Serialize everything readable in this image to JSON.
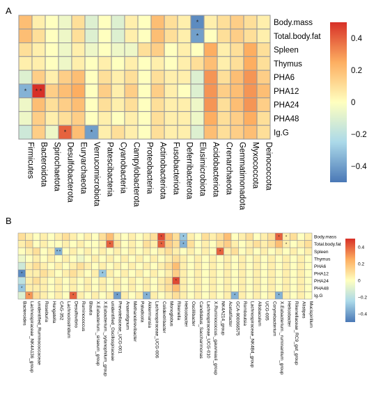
{
  "colors": {
    "low": "#4a78b6",
    "mid": "#ffffbf",
    "high": "#d73027",
    "grid": "#9a9a9a"
  },
  "chart_data": [
    {
      "panel_label": "A",
      "type": "heatmap",
      "title": "",
      "rows": [
        "Body.mass",
        "Total.body.fat",
        "Spleen",
        "Thymus",
        "PHA6",
        "PHA12",
        "PHA24",
        "PHA48",
        "Ig.G"
      ],
      "columns": [
        "Firmicutes",
        "Bacteroidota",
        "Spirochaetota",
        "Desulfobacterota",
        "Euryarchaeota",
        "Verrucomicrobiota",
        "Patescibacteria",
        "Cyanobacteria",
        "Campylobacterota",
        "Proteobacteria",
        "Actinobacteriota",
        "Fusobacteriota",
        "Deferribacterota",
        "Elusimicrobiota",
        "Acidobacteriota",
        "Crenarchaeota",
        "Gemmatimonadota",
        "Myxococcota",
        "Deinococcota"
      ],
      "values": [
        [
          0.2,
          0.05,
          0.0,
          -0.05,
          0.1,
          -0.1,
          0.0,
          -0.1,
          0.05,
          0.0,
          0.2,
          0.1,
          0.05,
          -0.45,
          0.05,
          0.1,
          0.15,
          0.1,
          0.05
        ],
        [
          0.2,
          0.1,
          0.0,
          -0.05,
          0.1,
          -0.1,
          0.0,
          -0.1,
          0.05,
          0.0,
          0.2,
          0.1,
          0.05,
          -0.4,
          0.0,
          0.1,
          0.15,
          0.1,
          0.05
        ],
        [
          0.1,
          0.05,
          0.0,
          -0.05,
          0.05,
          -0.05,
          0.0,
          -0.05,
          -0.05,
          0.1,
          0.15,
          0.0,
          0.05,
          0.0,
          0.25,
          0.05,
          0.1,
          0.25,
          0.1
        ],
        [
          0.05,
          0.05,
          0.0,
          -0.05,
          0.05,
          0.0,
          0.05,
          0.0,
          0.05,
          0.0,
          0.05,
          0.0,
          0.05,
          0.1,
          0.2,
          0.05,
          0.1,
          0.25,
          0.1
        ],
        [
          -0.1,
          0.15,
          0.05,
          0.15,
          0.2,
          0.0,
          0.1,
          0.05,
          0.1,
          0.0,
          0.1,
          0.05,
          0.05,
          -0.1,
          0.3,
          0.1,
          0.2,
          0.3,
          0.15
        ],
        [
          -0.35,
          0.5,
          0.15,
          0.2,
          0.25,
          0.0,
          0.15,
          0.05,
          0.15,
          0.0,
          0.15,
          0.05,
          0.0,
          -0.1,
          0.3,
          0.15,
          0.2,
          0.3,
          0.2
        ],
        [
          -0.05,
          0.2,
          0.1,
          0.15,
          0.2,
          0.0,
          0.1,
          0.05,
          0.1,
          0.0,
          0.1,
          0.05,
          0.05,
          -0.05,
          0.3,
          0.1,
          0.2,
          0.3,
          0.15
        ],
        [
          -0.05,
          0.15,
          0.05,
          0.1,
          0.15,
          0.0,
          0.05,
          0.0,
          0.05,
          0.0,
          0.1,
          0.05,
          0.05,
          -0.05,
          0.25,
          0.1,
          0.15,
          0.25,
          0.1
        ],
        [
          -0.15,
          0.15,
          -0.05,
          0.4,
          0.2,
          -0.4,
          0.05,
          0.1,
          0.05,
          0.0,
          0.1,
          0.05,
          0.05,
          -0.1,
          0.2,
          0.1,
          0.15,
          0.2,
          0.1
        ]
      ],
      "significance": [
        {
          "row": "Body.mass",
          "column": "Elusimicrobiota",
          "mark": "*"
        },
        {
          "row": "Total.body.fat",
          "column": "Elusimicrobiota",
          "mark": "*"
        },
        {
          "row": "PHA12",
          "column": "Firmicutes",
          "mark": "*"
        },
        {
          "row": "PHA12",
          "column": "Bacteroidota",
          "mark": "* *"
        },
        {
          "row": "Ig.G",
          "column": "Desulfobacterota",
          "mark": "*"
        },
        {
          "row": "Ig.G",
          "column": "Verrucomicrobiota",
          "mark": "*"
        }
      ],
      "color_range": [
        -0.5,
        0.5
      ],
      "colorbar_ticks": [
        "0.4",
        "0.2",
        "0",
        "−0.2",
        "−0.4"
      ],
      "colorbar_tick_values": [
        0.4,
        0.2,
        0,
        -0.2,
        -0.4
      ]
    },
    {
      "panel_label": "B",
      "type": "heatmap",
      "title": "",
      "rows": [
        "Body.mass",
        "Total.body.fat",
        "Spleen",
        "Thymus",
        "PHA6",
        "PHA12",
        "PHA24",
        "PHA48",
        "Ig.G"
      ],
      "columns": [
        "Bacteroides",
        "Lachnospiraceae_NK4A136_group",
        "unidentified_Ruminococcaceae",
        "Roseburia",
        "Hungatella",
        "CAG-352",
        "Lachnoclostridium",
        "Desulfovibrio",
        "Ruminococcus",
        "Blautia",
        "X.Eubacterium._siraeum_group",
        "X.Eubacterium._xylanophilum_group",
        "unidentified_Oscillospiraceae",
        "Prevotellaceae_UCG-001",
        "Anaerotignum",
        "Methanobrevibacter",
        "Paludicola",
        "Akkermansia",
        "Lachnospiraceae_UCG-006",
        "Colidextribacter",
        "Monoglobus",
        "Rikenella",
        "Helicobacter",
        "Oscillibacter",
        "Candidatus_Saccharimonas",
        "Lachnospiraceae_UCG-010",
        "X.Ruminococcus._gauvreauii_group",
        "NK4A214_group",
        "Acetatifactor",
        "GCA-900066575",
        "Romboutsia",
        "Lachnospiraceae_NK4B4_group",
        "Allobaculum",
        "UCG-005",
        "Corynebacterium",
        "X.Eubacterium._ruminantium_group",
        "Helicobacter",
        "Rikenellaceae_RC9_gut_group",
        "Alistipes",
        "Mucispirillum"
      ],
      "values": [
        [
          0.1,
          0.05,
          0.0,
          0.05,
          0.0,
          0.05,
          0.1,
          0.05,
          0.0,
          0.05,
          0.0,
          0.1,
          0.2,
          0.05,
          0.0,
          0.05,
          0.0,
          0.05,
          0.1,
          0.45,
          0.2,
          0.1,
          -0.3,
          0.05,
          0.0,
          0.1,
          0.05,
          0.1,
          0.2,
          0.0,
          0.05,
          0.1,
          0.0,
          0.05,
          0.1,
          0.4,
          0.05,
          0.1,
          0.0,
          0.05
        ],
        [
          0.05,
          0.1,
          0.0,
          0.05,
          0.0,
          0.0,
          0.05,
          0.0,
          0.05,
          0.0,
          0.0,
          0.05,
          0.4,
          0.1,
          0.0,
          0.05,
          0.0,
          0.1,
          0.05,
          0.4,
          0.15,
          0.1,
          -0.35,
          0.1,
          0.0,
          0.05,
          0.0,
          0.1,
          0.15,
          0.05,
          0.0,
          0.05,
          0.1,
          0.05,
          0.1,
          0.2,
          0.05,
          0.0,
          0.05,
          0.1
        ],
        [
          0.0,
          0.05,
          0.1,
          0.0,
          0.05,
          -0.35,
          0.0,
          0.05,
          0.0,
          0.05,
          0.0,
          0.05,
          0.0,
          0.05,
          0.0,
          0.05,
          0.0,
          0.05,
          0.0,
          0.05,
          0.1,
          0.05,
          0.0,
          0.05,
          0.0,
          0.05,
          0.0,
          0.4,
          0.05,
          0.1,
          0.0,
          0.05,
          0.0,
          0.05,
          0.0,
          0.05,
          0.0,
          0.05,
          0.0,
          0.05
        ],
        [
          -0.05,
          0.0,
          0.05,
          0.0,
          0.05,
          0.0,
          0.05,
          0.0,
          -0.05,
          0.0,
          0.05,
          0.0,
          0.05,
          0.0,
          0.05,
          0.0,
          0.05,
          0.0,
          0.05,
          0.0,
          0.05,
          0.1,
          0.05,
          0.0,
          0.05,
          0.0,
          0.05,
          0.0,
          0.05,
          0.0,
          0.05,
          0.0,
          0.05,
          0.0,
          0.05,
          0.0,
          0.05,
          0.0,
          0.05,
          0.0
        ],
        [
          -0.15,
          0.05,
          0.1,
          0.05,
          0.0,
          0.05,
          0.0,
          0.05,
          0.1,
          0.05,
          0.0,
          0.05,
          0.0,
          0.05,
          0.0,
          0.05,
          0.0,
          0.05,
          0.0,
          0.05,
          0.1,
          0.2,
          0.05,
          0.0,
          0.05,
          0.0,
          0.05,
          0.0,
          0.05,
          0.0,
          0.05,
          0.0,
          0.05,
          0.0,
          0.05,
          0.0,
          0.05,
          0.0,
          0.05,
          0.0
        ],
        [
          -0.45,
          0.05,
          0.05,
          0.1,
          0.05,
          0.0,
          0.05,
          0.1,
          0.05,
          0.0,
          0.05,
          -0.3,
          0.05,
          0.0,
          0.05,
          0.0,
          0.05,
          0.0,
          0.05,
          0.0,
          0.05,
          0.15,
          0.05,
          0.0,
          0.05,
          0.0,
          0.05,
          0.0,
          0.05,
          0.0,
          0.05,
          0.0,
          0.05,
          0.0,
          0.05,
          0.0,
          0.05,
          0.0,
          0.05,
          0.0
        ],
        [
          -0.2,
          0.05,
          0.1,
          0.05,
          0.0,
          0.05,
          0.0,
          0.05,
          0.0,
          0.05,
          0.0,
          0.05,
          0.0,
          0.05,
          0.0,
          0.05,
          0.0,
          0.05,
          0.0,
          0.05,
          0.1,
          0.45,
          0.05,
          0.0,
          0.05,
          0.0,
          0.05,
          0.0,
          0.05,
          0.0,
          0.05,
          0.0,
          0.05,
          0.0,
          0.05,
          0.0,
          0.05,
          0.0,
          0.05,
          0.0
        ],
        [
          -0.3,
          0.05,
          0.05,
          0.05,
          0.0,
          0.05,
          0.0,
          0.05,
          0.0,
          0.05,
          0.0,
          0.05,
          0.0,
          0.05,
          0.0,
          0.05,
          0.0,
          0.05,
          0.0,
          0.05,
          0.1,
          0.2,
          0.05,
          0.0,
          0.05,
          0.0,
          0.05,
          0.0,
          0.05,
          0.0,
          0.05,
          0.0,
          0.05,
          0.0,
          0.05,
          0.0,
          0.05,
          0.0,
          0.05,
          0.0
        ],
        [
          -0.1,
          0.3,
          0.1,
          0.05,
          0.0,
          0.05,
          0.0,
          0.4,
          0.05,
          0.0,
          0.05,
          0.0,
          0.05,
          -0.4,
          0.05,
          0.0,
          0.05,
          -0.35,
          0.05,
          0.0,
          0.05,
          0.1,
          0.05,
          0.0,
          0.05,
          0.0,
          0.05,
          0.0,
          0.05,
          -0.35,
          0.05,
          0.0,
          0.05,
          0.0,
          0.05,
          -0.35,
          0.05,
          0.0,
          0.05,
          0.0
        ]
      ],
      "significance": [
        {
          "row": "Body.mass",
          "column": "Colidextribacter",
          "mark": "*"
        },
        {
          "row": "Body.mass",
          "column": "Helicobacter",
          "mark": "*"
        },
        {
          "row": "Body.mass",
          "column": "X.Eubacterium._ruminantium_group",
          "mark": "*"
        },
        {
          "row": "Total.body.fat",
          "column": "unidentified_Oscillospiraceae",
          "mark": "*"
        },
        {
          "row": "Total.body.fat",
          "column": "Colidextribacter",
          "mark": "*"
        },
        {
          "row": "Total.body.fat",
          "column": "Helicobacter",
          "mark": "*"
        },
        {
          "row": "Spleen",
          "column": "CAG-352",
          "mark": "* *"
        },
        {
          "row": "Spleen",
          "column": "NK4A214_group",
          "mark": "*"
        },
        {
          "row": "PHA12",
          "column": "Bacteroides",
          "mark": "*"
        },
        {
          "row": "PHA12",
          "column": "X.Eubacterium._xylanophilum_group",
          "mark": "*"
        },
        {
          "row": "PHA24",
          "column": "Rikenella",
          "mark": "*"
        },
        {
          "row": "PHA48",
          "column": "Bacteroides",
          "mark": "*"
        },
        {
          "row": "Ig.G",
          "column": "Lachnospiraceae_NK4A136_group",
          "mark": "*"
        },
        {
          "row": "Ig.G",
          "column": "Desulfovibrio",
          "mark": "*"
        },
        {
          "row": "Ig.G",
          "column": "Prevotellaceae_UCG-001",
          "mark": "*"
        },
        {
          "row": "Ig.G",
          "column": "Akkermansia",
          "mark": "*"
        },
        {
          "row": "Ig.G",
          "column": "GCA-900066575",
          "mark": "*"
        },
        {
          "row": "Ig.G",
          "column": "X.Eubacterium._ruminantium_group",
          "mark": "*"
        }
      ],
      "color_range": [
        -0.5,
        0.5
      ],
      "colorbar_ticks": [
        "0.4",
        "0.2",
        "0",
        "−0.2",
        "−0.4"
      ],
      "colorbar_tick_values": [
        0.4,
        0.2,
        0,
        -0.2,
        -0.4
      ]
    }
  ]
}
